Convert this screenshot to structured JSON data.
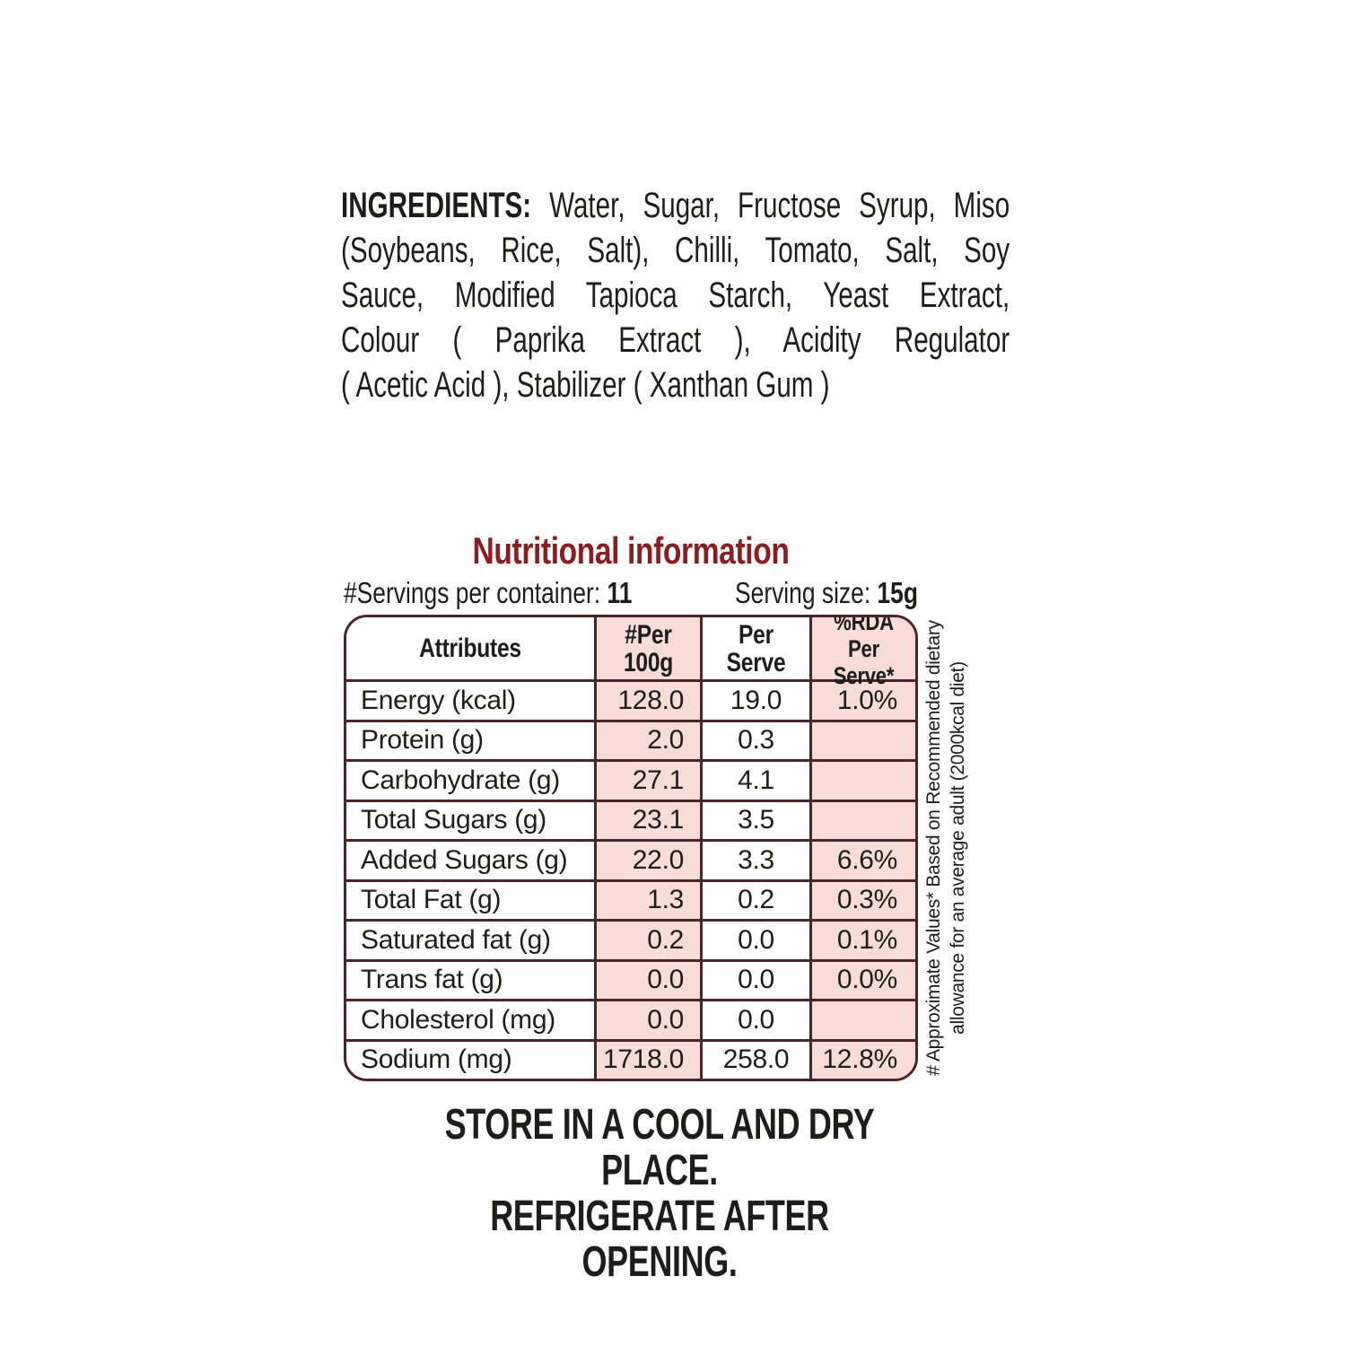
{
  "colors": {
    "accent_red": "#8e1b20",
    "cell_pink": "#f7dcd7",
    "border_maroon": "#4a2529",
    "text_black": "#1d1d1b"
  },
  "ingredients": {
    "label": "INGREDIENTS:",
    "full_text": "Water, Sugar, Fructose Syrup, Miso (Soybeans, Rice, Salt), Chilli, Tomato, Salt, Soy Sauce, Modified Tapioca Starch, Yeast Extract, Colour ( Paprika Extract ), Acidity Regulator ( Acetic Acid ), Stabilizer ( Xanthan Gum )",
    "line1_rest": "Water, Sugar, Fructose Syrup, Miso",
    "line2": "(Soybeans, Rice, Salt), Chilli, Tomato, Salt, Soy",
    "line3": "Sauce, Modified Tapioca Starch, Yeast Extract,",
    "line4": "Colour ( Paprika Extract ), Acidity Regulator",
    "line5": "( Acetic Acid ), Stabilizer ( Xanthan Gum )"
  },
  "nutrition": {
    "title": "Nutritional information",
    "servings_label": "#Servings per container:",
    "servings_value": "11",
    "serving_size_label": "Serving size:",
    "serving_size_value": "15g",
    "headers": {
      "attributes": "Attributes",
      "per100_l1": "#Per",
      "per100_l2": "100g",
      "serve_l1": "Per",
      "serve_l2": "Serve",
      "rda_l1": "%RDA",
      "rda_l2": "Per Serve*"
    },
    "rows": [
      {
        "label": "Energy (kcal)",
        "per100": "128.0",
        "per_serve": "19.0",
        "rda": "1.0%"
      },
      {
        "label": "Protein (g)",
        "per100": "2.0",
        "per_serve": "0.3",
        "rda": ""
      },
      {
        "label": "Carbohydrate (g)",
        "per100": "27.1",
        "per_serve": "4.1",
        "rda": ""
      },
      {
        "label": "Total Sugars (g)",
        "per100": "23.1",
        "per_serve": "3.5",
        "rda": ""
      },
      {
        "label": "Added Sugars (g)",
        "per100": "22.0",
        "per_serve": "3.3",
        "rda": "6.6%"
      },
      {
        "label": "Total Fat (g)",
        "per100": "1.3",
        "per_serve": "0.2",
        "rda": "0.3%"
      },
      {
        "label": "Saturated fat (g)",
        "per100": "0.2",
        "per_serve": "0.0",
        "rda": "0.1%"
      },
      {
        "label": "Trans fat (g)",
        "per100": "0.0",
        "per_serve": "0.0",
        "rda": "0.0%"
      },
      {
        "label": "Cholesterol (mg)",
        "per100": "0.0",
        "per_serve": "0.0",
        "rda": ""
      },
      {
        "label": "Sodium (mg)",
        "per100": "1718.0",
        "per_serve": "258.0",
        "rda": "12.8%"
      }
    ],
    "footnote_line1": "# Approximate Values* Based on Recommended dietary",
    "footnote_line2": "allowance for an average adult (2000kcal diet)"
  },
  "storage": {
    "line1": "STORE IN A COOL AND DRY PLACE.",
    "line2": "REFRIGERATE AFTER OPENING."
  }
}
